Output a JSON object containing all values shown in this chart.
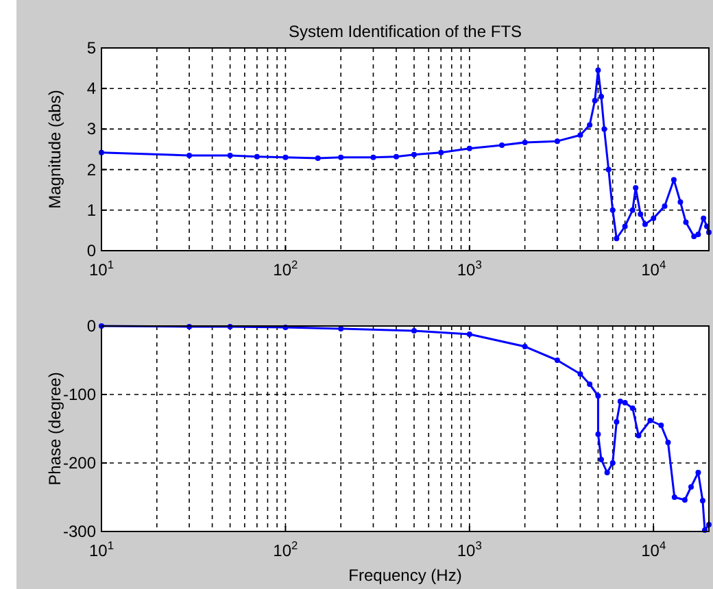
{
  "chart_data": [
    {
      "type": "line",
      "title": "System Identification of the FTS",
      "ylabel": "Magnitude (abs)",
      "log": "x",
      "grid": true,
      "marker": "circle",
      "line_style": "solid",
      "xlim": [
        10,
        20000
      ],
      "ylim": [
        0,
        5
      ],
      "xticks": [
        {
          "value": 10,
          "label": "10$^{1}$"
        },
        {
          "value": 100,
          "label": "10$^{2}$"
        },
        {
          "value": 1000,
          "label": "10$^{3}$"
        },
        {
          "value": 10000,
          "label": "10$^{4}$"
        }
      ],
      "yticks": [
        0,
        1,
        2,
        3,
        4,
        5
      ],
      "series": [
        {
          "color": "#0000ff",
          "x": [
            10,
            30,
            50,
            70,
            100,
            150,
            200,
            300,
            400,
            500,
            700,
            1000,
            1500,
            2000,
            3000,
            4000,
            4500,
            4800,
            5000,
            5200,
            5400,
            5700,
            6000,
            6300,
            7000,
            7700,
            8000,
            8500,
            9000,
            10000,
            11500,
            12900,
            14000,
            15000,
            16600,
            17500,
            18700,
            19500,
            20000
          ],
          "values": [
            2.42,
            2.35,
            2.35,
            2.32,
            2.3,
            2.28,
            2.3,
            2.3,
            2.32,
            2.37,
            2.42,
            2.52,
            2.6,
            2.67,
            2.7,
            2.85,
            3.1,
            3.7,
            4.45,
            3.8,
            3.0,
            2.0,
            1.0,
            0.3,
            0.6,
            1.0,
            1.55,
            0.9,
            0.65,
            0.8,
            1.1,
            1.75,
            1.2,
            0.7,
            0.35,
            0.4,
            0.8,
            0.6,
            0.45
          ]
        }
      ]
    },
    {
      "type": "line",
      "xlabel": "Frequency (Hz)",
      "ylabel": "Phase (degree)",
      "log": "x",
      "grid": true,
      "marker": "circle",
      "line_style": "solid",
      "xlim": [
        10,
        20000
      ],
      "ylim": [
        -300,
        0
      ],
      "xticks": [
        {
          "value": 10,
          "label": "10$^{1}$"
        },
        {
          "value": 100,
          "label": "10$^{2}$"
        },
        {
          "value": 1000,
          "label": "10$^{3}$"
        },
        {
          "value": 10000,
          "label": "10$^{4}$"
        }
      ],
      "yticks": [
        -300,
        -200,
        -100,
        0
      ],
      "series": [
        {
          "color": "#0000ff",
          "x": [
            10,
            30,
            50,
            100,
            200,
            500,
            1000,
            2000,
            3000,
            4000,
            4500,
            5000,
            5000,
            5200,
            5600,
            6000,
            6300,
            6600,
            7000,
            7700,
            8300,
            9600,
            11000,
            12000,
            13000,
            14800,
            16000,
            17500,
            18500,
            19000,
            20000
          ],
          "values": [
            0,
            -1,
            -1,
            -2,
            -4,
            -7,
            -12,
            -30,
            -50,
            -70,
            -85,
            -102,
            -158,
            -195,
            -214,
            -200,
            -140,
            -110,
            -112,
            -120,
            -160,
            -138,
            -145,
            -170,
            -250,
            -254,
            -235,
            -214,
            -255,
            -298,
            -290
          ]
        }
      ]
    }
  ]
}
